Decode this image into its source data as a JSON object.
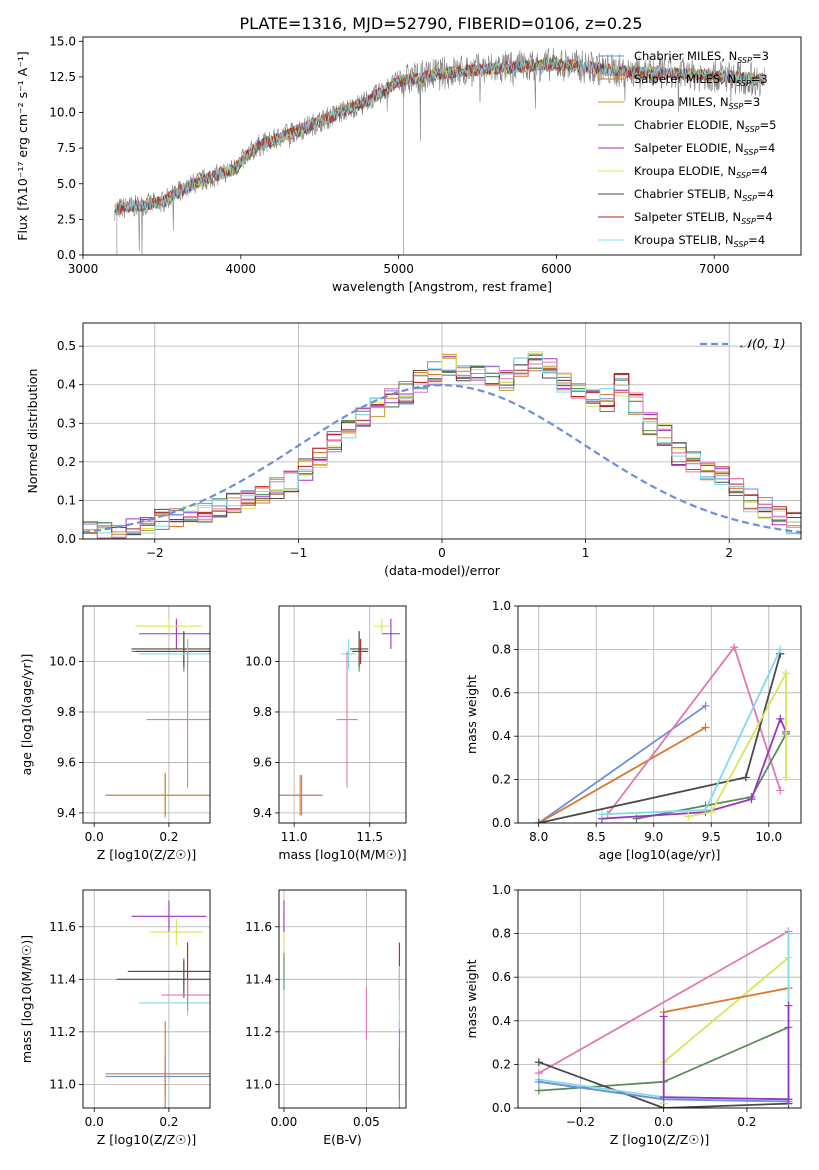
{
  "figure": {
    "title": "PLATE=1316, MJD=52790, FIBERID=0106, z=0.25"
  },
  "models": [
    {
      "key": "cm",
      "name": "Chabrier MILES",
      "nssp": "3",
      "color": "#6b8fd9"
    },
    {
      "key": "sm",
      "name": "Salpeter MILES",
      "nssp": "3",
      "color": "#d9772b"
    },
    {
      "key": "km",
      "name": "Kroupa MILES",
      "nssp": "3",
      "color": "#c99a2e"
    },
    {
      "key": "ce",
      "name": "Chabrier ELODIE",
      "nssp": "5",
      "color": "#5b8a5b"
    },
    {
      "key": "se",
      "name": "Salpeter ELODIE",
      "nssp": "4",
      "color": "#9b33c4"
    },
    {
      "key": "ke",
      "name": "Kroupa ELODIE",
      "nssp": "4",
      "color": "#d9e55a"
    },
    {
      "key": "cs",
      "name": "Chabrier STELIB",
      "nssp": "4",
      "color": "#4a4a4a"
    },
    {
      "key": "ss",
      "name": "Salpeter STELIB",
      "nssp": "4",
      "color": "#b22222"
    },
    {
      "key": "ks",
      "name": "Kroupa STELIB",
      "nssp": "4",
      "color": "#80dce6"
    }
  ],
  "legend_suffix": "N",
  "legend_sub": "SSP",
  "chart_data": [
    {
      "id": "spectrum",
      "type": "line",
      "xlabel": "wavelength [Angstrom, rest frame]",
      "ylabel": "Flux [fλ10⁻¹⁷ erg cm⁻² s⁻¹ A⁻¹]",
      "xlim": [
        3000,
        7550
      ],
      "ylim": [
        0,
        15.3
      ],
      "xticks": [
        3000,
        4000,
        5000,
        6000,
        7000
      ],
      "yticks": [
        0.0,
        2.5,
        5.0,
        7.5,
        10.0,
        12.5,
        15.0
      ],
      "legend": "upper right",
      "data_color": "#808080",
      "continuum": [
        [
          3200,
          3.2
        ],
        [
          3500,
          3.7
        ],
        [
          3700,
          5.0
        ],
        [
          3950,
          6.0
        ],
        [
          4100,
          7.6
        ],
        [
          4400,
          8.9
        ],
        [
          4800,
          10.8
        ],
        [
          5000,
          12.2
        ],
        [
          5300,
          12.8
        ],
        [
          5500,
          13.0
        ],
        [
          6000,
          13.4
        ],
        [
          6500,
          12.8
        ],
        [
          7000,
          12.6
        ],
        [
          7300,
          12.3
        ]
      ]
    },
    {
      "id": "residuals",
      "type": "histogram",
      "xlabel": "(data-model)/error",
      "ylabel": "Normed distribution",
      "xlim": [
        -2.5,
        2.5
      ],
      "ylim": [
        0,
        0.56
      ],
      "xticks": [
        -2,
        -1,
        0,
        1,
        2
      ],
      "yticks": [
        0.0,
        0.1,
        0.2,
        0.3,
        0.4,
        0.5
      ],
      "bin_width": 0.1,
      "bin_start": -2.5,
      "reference_label": "𝒩(0, 1)",
      "reference_color": "#6b8fd9",
      "counts_base": [
        0.02,
        0.02,
        0.02,
        0.03,
        0.04,
        0.05,
        0.05,
        0.06,
        0.07,
        0.08,
        0.09,
        0.1,
        0.12,
        0.13,
        0.15,
        0.18,
        0.21,
        0.25,
        0.28,
        0.32,
        0.34,
        0.36,
        0.38,
        0.41,
        0.43,
        0.45,
        0.44,
        0.43,
        0.42,
        0.41,
        0.44,
        0.46,
        0.44,
        0.4,
        0.38,
        0.37,
        0.36,
        0.4,
        0.35,
        0.3,
        0.27,
        0.22,
        0.2,
        0.18,
        0.16,
        0.13,
        0.1,
        0.08,
        0.06,
        0.04
      ]
    },
    {
      "id": "age_vs_Z",
      "type": "errorbar",
      "xlabel": "Z [log10(Z/Z☉)]",
      "ylabel": "age  [log10(age/yr)]",
      "xlim": [
        -0.03,
        0.31
      ],
      "ylim": [
        9.36,
        10.22
      ],
      "xticks": [
        0.0,
        0.2
      ],
      "yticks": [
        9.4,
        9.6,
        9.8,
        10.0
      ],
      "points": [
        {
          "m": "cm",
          "x": 0.19,
          "y": 9.47,
          "xe": 0.16,
          "ye": 0.08
        },
        {
          "m": "sm",
          "x": 0.19,
          "y": 9.47,
          "xe": 0.16,
          "ye": 0.08
        },
        {
          "m": "km",
          "x": 0.19,
          "y": 9.47,
          "xe": 0.16,
          "ye": 0.09
        },
        {
          "m": "ce",
          "x": 0.24,
          "y": 10.04,
          "xe": 0.14,
          "ye": 0.08
        },
        {
          "m": "se",
          "x": 0.22,
          "y": 10.11,
          "xe": 0.1,
          "ye": 0.06
        },
        {
          "m": "ke",
          "x": 0.2,
          "y": 10.14,
          "xe": 0.09,
          "ye": 0.03
        },
        {
          "m": "cs",
          "x": 0.24,
          "y": 10.05,
          "xe": 0.14,
          "ye": 0.07
        },
        {
          "m": "ss",
          "x": 0.25,
          "y": 10.04,
          "xe": 0.14,
          "ye": 0.05
        },
        {
          "m": "ks",
          "x": 0.25,
          "y": 10.03,
          "xe": 0.13,
          "ye": 0.06
        },
        {
          "m": "pink",
          "x": 0.25,
          "y": 9.77,
          "xe": 0.11,
          "ye": 0.27
        }
      ]
    },
    {
      "id": "age_vs_mass",
      "type": "errorbar",
      "xlabel": "mass [log10(M/M☉)]",
      "xlim": [
        10.9,
        11.74
      ],
      "ylim": [
        9.36,
        10.22
      ],
      "xticks": [
        11.0,
        11.5
      ],
      "yticks": [
        9.4,
        9.6,
        9.8,
        10.0
      ],
      "points": [
        {
          "m": "cm",
          "x": 11.05,
          "y": 9.47,
          "xe": 0.14,
          "ye": 0.08
        },
        {
          "m": "sm",
          "x": 11.04,
          "y": 9.47,
          "xe": 0.14,
          "ye": 0.08
        },
        {
          "m": "se",
          "x": 11.64,
          "y": 10.11,
          "xe": 0.06,
          "ye": 0.06
        },
        {
          "m": "ke",
          "x": 11.58,
          "y": 10.14,
          "xe": 0.05,
          "ye": 0.03
        },
        {
          "m": "ce",
          "x": 11.43,
          "y": 10.04,
          "xe": 0.05,
          "ye": 0.08
        },
        {
          "m": "cs",
          "x": 11.43,
          "y": 10.05,
          "xe": 0.06,
          "ye": 0.07
        },
        {
          "m": "ss",
          "x": 11.44,
          "y": 10.04,
          "xe": 0.05,
          "ye": 0.05
        },
        {
          "m": "ks",
          "x": 11.36,
          "y": 10.03,
          "xe": 0.05,
          "ye": 0.06
        },
        {
          "m": "pink",
          "x": 11.35,
          "y": 9.77,
          "xe": 0.07,
          "ye": 0.27
        }
      ]
    },
    {
      "id": "weight_vs_age",
      "type": "line",
      "xlabel": "age  [log10(age/yr)]",
      "ylabel": "mass weight",
      "xlim": [
        7.82,
        10.28
      ],
      "ylim": [
        0,
        1.0
      ],
      "xticks": [
        8.0,
        8.5,
        9.0,
        9.5,
        10.0
      ],
      "yticks": [
        0.0,
        0.2,
        0.4,
        0.6,
        0.8,
        1.0
      ],
      "series": [
        {
          "m": "cm",
          "x": [
            8.0,
            9.45
          ],
          "y": [
            0.0,
            0.54
          ]
        },
        {
          "m": "sm",
          "x": [
            8.0,
            9.45
          ],
          "y": [
            0.0,
            0.44
          ]
        },
        {
          "m": "pink",
          "x": [
            8.6,
            9.7,
            10.1
          ],
          "y": [
            0.04,
            0.81,
            0.15
          ]
        },
        {
          "m": "cs",
          "x": [
            8.0,
            9.8,
            10.1
          ],
          "y": [
            0.0,
            0.21,
            0.78
          ]
        },
        {
          "m": "ce",
          "x": [
            8.85,
            9.45,
            9.85,
            10.15
          ],
          "y": [
            0.02,
            0.08,
            0.12,
            0.41
          ]
        },
        {
          "m": "se",
          "x": [
            8.55,
            9.45,
            9.85,
            10.1,
            10.15
          ],
          "y": [
            0.02,
            0.05,
            0.11,
            0.48,
            0.42
          ]
        },
        {
          "m": "ke",
          "x": [
            9.3,
            9.5,
            10.15,
            10.15
          ],
          "y": [
            0.03,
            0.05,
            0.69,
            0.21
          ]
        },
        {
          "m": "ks",
          "x": [
            8.55,
            9.45,
            10.1
          ],
          "y": [
            0.04,
            0.06,
            0.8
          ]
        }
      ]
    },
    {
      "id": "mass_vs_Z",
      "type": "errorbar",
      "xlabel": "Z [log10(Z/Z☉)]",
      "ylabel": "mass [log10(M/M☉)]",
      "xlim": [
        -0.03,
        0.31
      ],
      "ylim": [
        10.91,
        11.74
      ],
      "xticks": [
        0.0,
        0.2
      ],
      "yticks": [
        11.0,
        11.2,
        11.4,
        11.6
      ],
      "points": [
        {
          "m": "cm",
          "x": 0.19,
          "y": 11.03,
          "xe": 0.16,
          "ye": 0.08
        },
        {
          "m": "sm",
          "x": 0.19,
          "y": 11.04,
          "xe": 0.16,
          "ye": 0.2
        },
        {
          "m": "se",
          "x": 0.2,
          "y": 11.64,
          "xe": 0.1,
          "ye": 0.06
        },
        {
          "m": "ke",
          "x": 0.22,
          "y": 11.58,
          "xe": 0.07,
          "ye": 0.05
        },
        {
          "m": "ce",
          "x": 0.24,
          "y": 11.43,
          "xe": 0.14,
          "ye": 0.05
        },
        {
          "m": "cs",
          "x": 0.24,
          "y": 11.4,
          "xe": 0.18,
          "ye": 0.07
        },
        {
          "m": "ss",
          "x": 0.25,
          "y": 11.43,
          "xe": 0.16,
          "ye": 0.11
        },
        {
          "m": "ks",
          "x": 0.25,
          "y": 11.31,
          "xe": 0.13,
          "ye": 0.05
        },
        {
          "m": "pink",
          "x": 0.25,
          "y": 11.34,
          "xe": 0.07,
          "ye": 0.06
        }
      ]
    },
    {
      "id": "mass_vs_ebv",
      "type": "errorbar",
      "xlabel": "E(B-V)",
      "xlim": [
        -0.003,
        0.074
      ],
      "ylim": [
        10.91,
        11.74
      ],
      "xticks": [
        0.0,
        0.05
      ],
      "yticks": [
        11.0,
        11.2,
        11.4,
        11.6
      ],
      "points": [
        {
          "m": "ke",
          "x": 0.0,
          "y": 11.58,
          "xe": 0,
          "ye": 0.06
        },
        {
          "m": "se",
          "x": 0.0,
          "y": 11.64,
          "xe": 0,
          "ye": 0.06
        },
        {
          "m": "ce",
          "x": 0.0,
          "y": 11.43,
          "xe": 0,
          "ye": 0.07
        },
        {
          "m": "pink",
          "x": 0.05,
          "y": 11.27,
          "xe": 0,
          "ye": 0.1
        },
        {
          "m": "cm",
          "x": 0.07,
          "y": 11.04,
          "xe": 0,
          "ye": 0.2
        },
        {
          "m": "sm",
          "x": 0.07,
          "y": 11.04,
          "xe": 0,
          "ye": 0.1
        },
        {
          "m": "ss",
          "x": 0.07,
          "y": 11.43,
          "xe": 0,
          "ye": 0.11
        },
        {
          "m": "ks",
          "x": 0.07,
          "y": 11.33,
          "xe": 0,
          "ye": 0.12
        }
      ]
    },
    {
      "id": "weight_vs_Z",
      "type": "line",
      "xlabel": "Z [log10(Z/Z☉)]",
      "ylabel": "mass weight",
      "xlim": [
        -0.35,
        0.33
      ],
      "ylim": [
        0,
        1.0
      ],
      "xticks": [
        -0.2,
        0.0,
        0.2
      ],
      "yticks": [
        0.0,
        0.2,
        0.4,
        0.6,
        0.8,
        1.0
      ],
      "series": [
        {
          "m": "pink",
          "x": [
            -0.3,
            0.3
          ],
          "y": [
            0.16,
            0.81
          ]
        },
        {
          "m": "ke",
          "x": [
            0.0,
            0.0,
            0.3
          ],
          "y": [
            0.02,
            0.21,
            0.69
          ]
        },
        {
          "m": "sm",
          "x": [
            0.0,
            0.3
          ],
          "y": [
            0.44,
            0.55
          ]
        },
        {
          "m": "ce",
          "x": [
            -0.3,
            0.0,
            0.3
          ],
          "y": [
            0.08,
            0.12,
            0.37
          ]
        },
        {
          "m": "cs",
          "x": [
            -0.3,
            0.0,
            0.3
          ],
          "y": [
            0.21,
            0.0,
            0.02
          ]
        },
        {
          "m": "ks",
          "x": [
            -0.3,
            0.0,
            0.3,
            0.3
          ],
          "y": [
            0.13,
            0.05,
            0.04,
            0.8
          ]
        },
        {
          "m": "cm",
          "x": [
            -0.3,
            0.0,
            0.3
          ],
          "y": [
            0.12,
            0.04,
            0.03
          ]
        },
        {
          "m": "se",
          "x": [
            0.0,
            0.0,
            0.3,
            0.3
          ],
          "y": [
            0.42,
            0.05,
            0.04,
            0.47
          ]
        }
      ]
    }
  ],
  "extra_colors": {
    "pink": "#e377b2"
  }
}
